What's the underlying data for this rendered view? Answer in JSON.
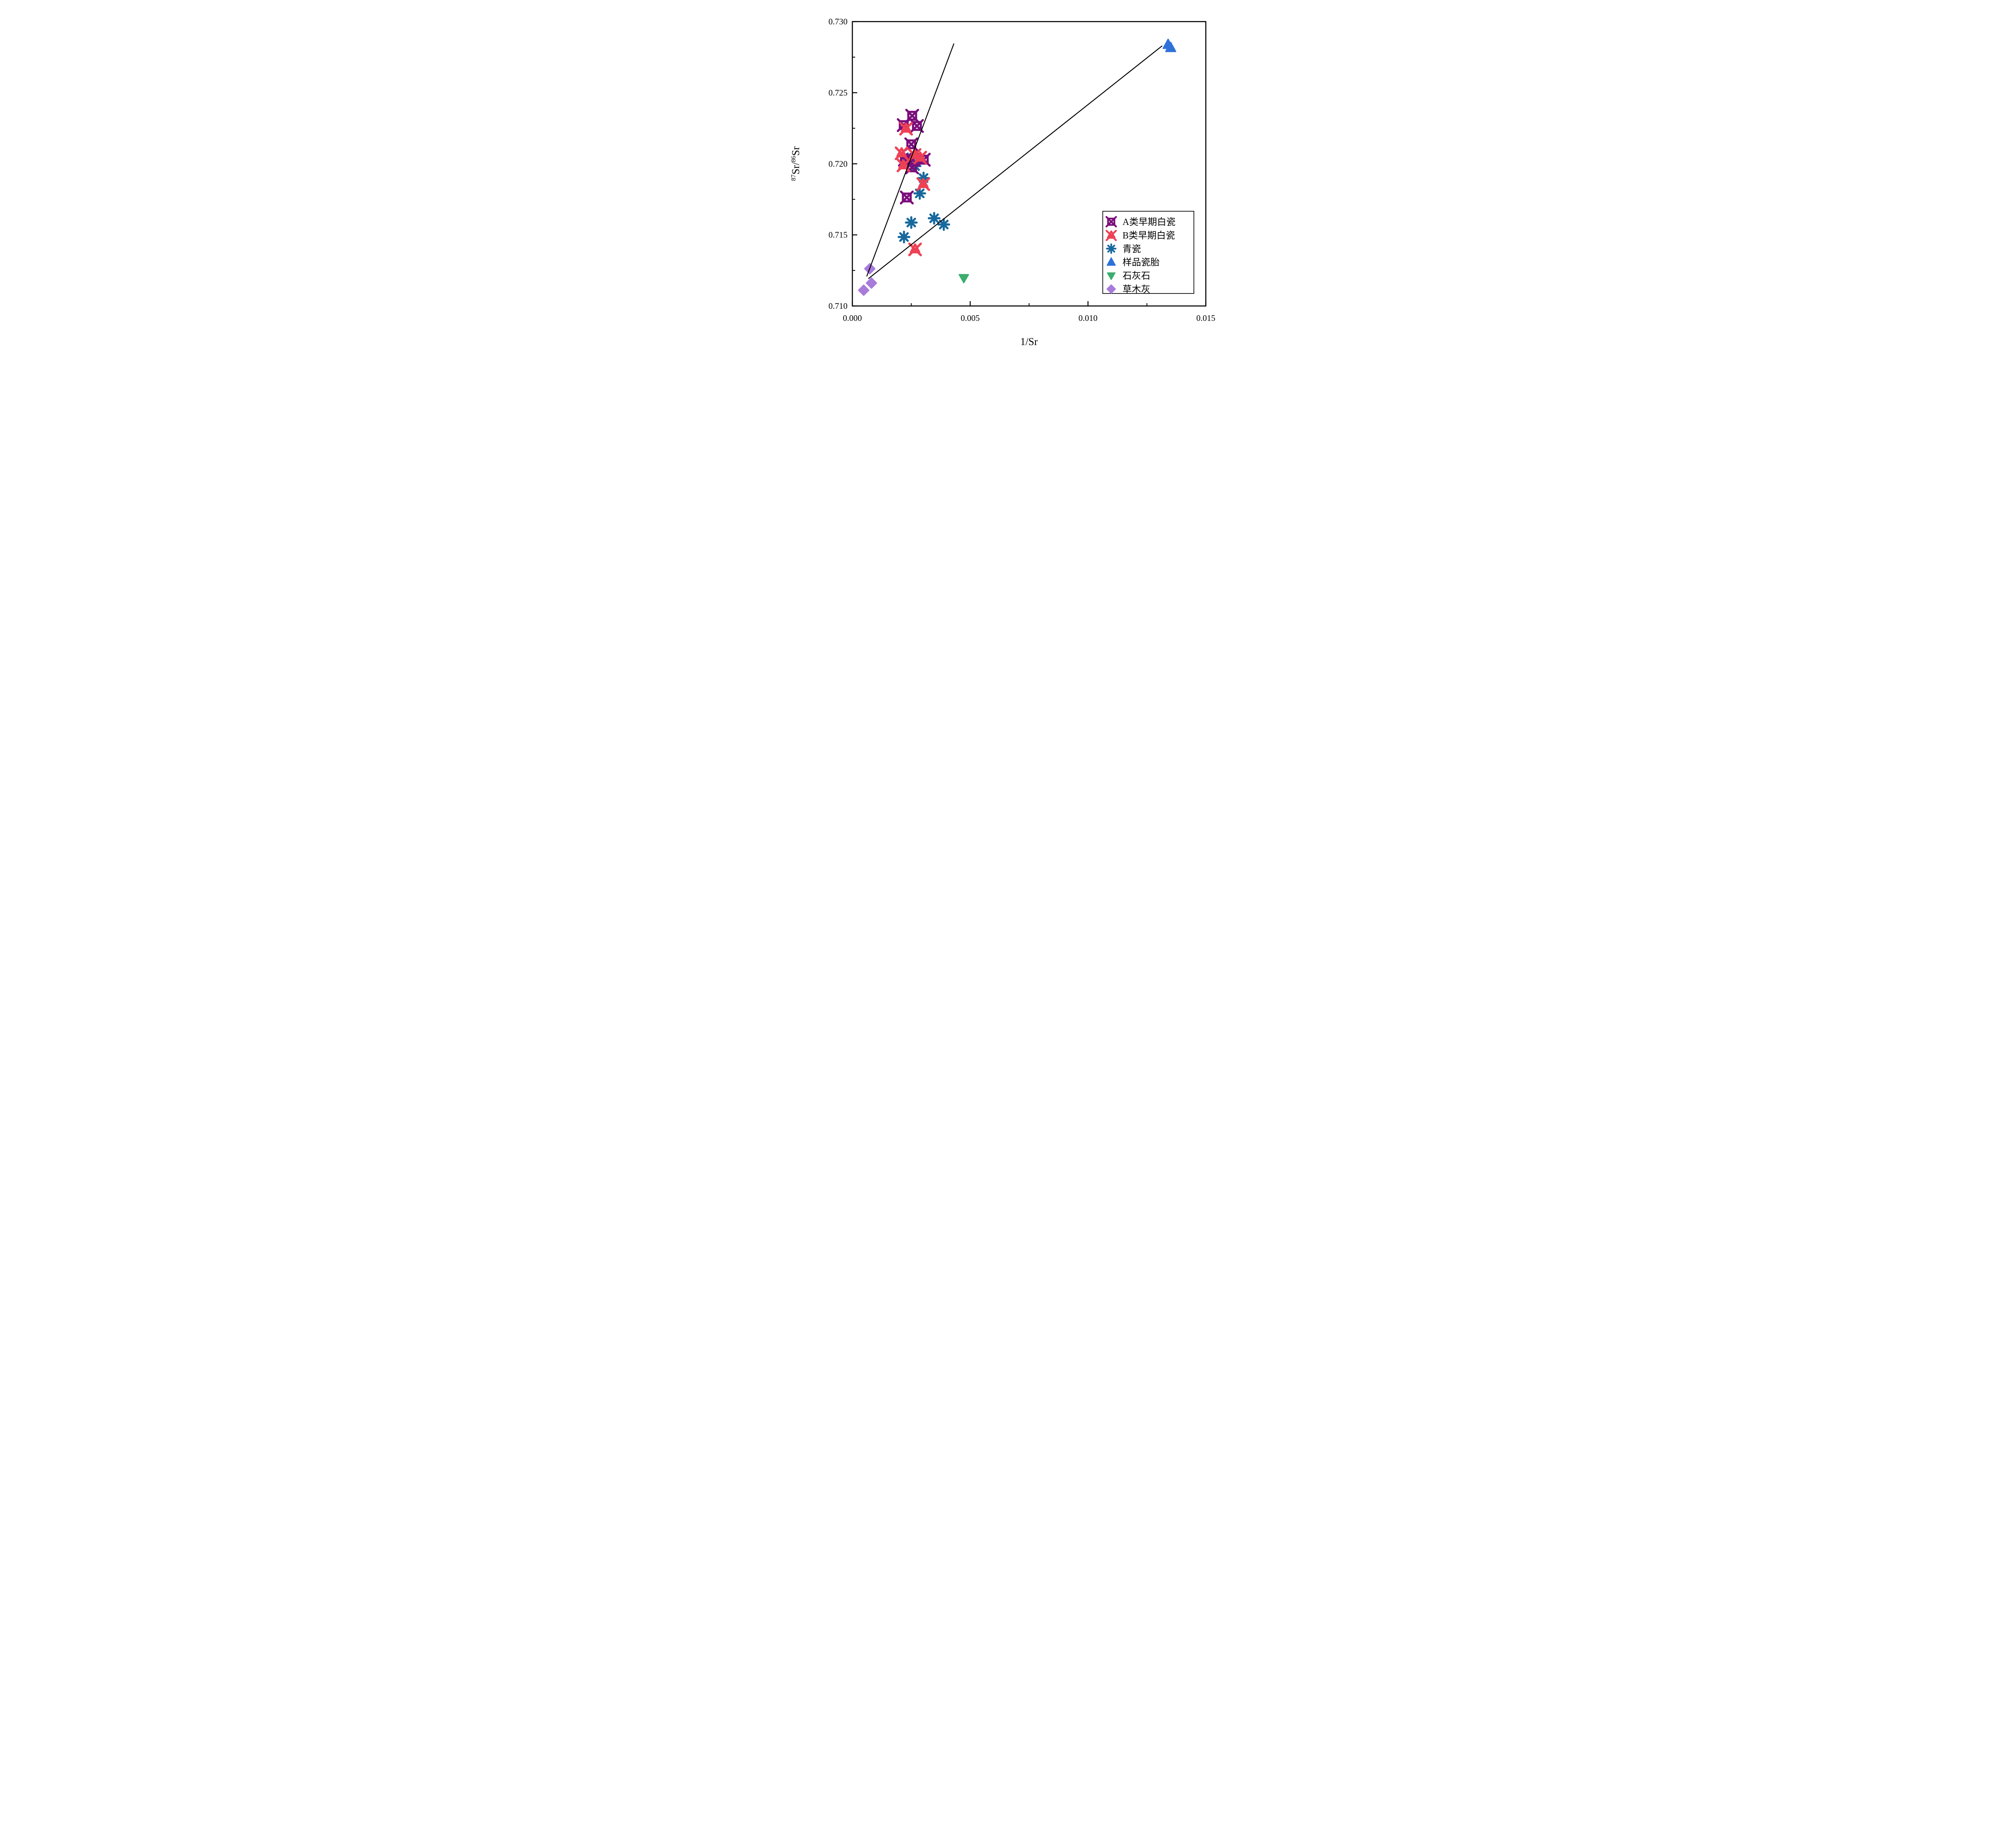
{
  "figure": {
    "background": "#ffffff",
    "frame_color": "#000000"
  },
  "chart_data": {
    "type": "scatter",
    "title": "",
    "xlabel": "1/Sr",
    "ylabel": "87Sr/86Sr",
    "ylabel_parts": [
      {
        "text": "87",
        "sup": true
      },
      {
        "text": "Sr/",
        "sup": false
      },
      {
        "text": "86",
        "sup": true
      },
      {
        "text": "Sr",
        "sup": false
      }
    ],
    "xlim": [
      0.0,
      0.015
    ],
    "ylim": [
      0.71,
      0.73
    ],
    "grid": false,
    "xticks": {
      "values": [
        0.0,
        0.005,
        0.01,
        0.015
      ],
      "labels": [
        "0.000",
        "0.005",
        "0.010",
        "0.015"
      ],
      "minor": [
        0.0025,
        0.0075,
        0.0125
      ]
    },
    "yticks": {
      "values": [
        0.71,
        0.715,
        0.72,
        0.725,
        0.73
      ],
      "labels": [
        "0.710",
        "0.715",
        "0.720",
        "0.725",
        "0.730"
      ],
      "minor": [
        0.7125,
        0.7175,
        0.7225,
        0.7275
      ]
    },
    "legend_position": "lower right",
    "series": [
      {
        "name": "A类早期白瓷",
        "marker": "crossed-square",
        "color": "#7B0D7B",
        "points": [
          [
            0.00254,
            0.72338
          ],
          [
            0.00218,
            0.72272
          ],
          [
            0.00274,
            0.72266
          ],
          [
            0.0025,
            0.72137
          ],
          [
            0.00223,
            0.72029
          ],
          [
            0.00256,
            0.72026
          ],
          [
            0.00253,
            0.71975
          ],
          [
            0.00303,
            0.72029
          ],
          [
            0.00231,
            0.71763
          ]
        ]
      },
      {
        "name": "B类早期白瓷",
        "marker": "triangle-x",
        "color": "#EE4155",
        "points": [
          [
            0.00228,
            0.72249
          ],
          [
            0.00209,
            0.72076
          ],
          [
            0.00264,
            0.72064
          ],
          [
            0.00288,
            0.72046
          ],
          [
            0.00217,
            0.71991
          ],
          [
            0.00301,
            0.71859
          ],
          [
            0.00266,
            0.714
          ]
        ]
      },
      {
        "name": "青瓷",
        "marker": "asterisk",
        "color": "#16689D",
        "points": [
          [
            0.00235,
            0.72035
          ],
          [
            0.00266,
            0.71984
          ],
          [
            0.00302,
            0.719
          ],
          [
            0.00286,
            0.71792
          ],
          [
            0.0025,
            0.71587
          ],
          [
            0.00347,
            0.71617
          ],
          [
            0.00388,
            0.71573
          ],
          [
            0.00219,
            0.71485
          ]
        ]
      },
      {
        "name": "样品瓷胎",
        "marker": "triangle-up",
        "color": "#2E72D9",
        "points": [
          [
            0.0134,
            0.72839
          ],
          [
            0.01351,
            0.72817
          ]
        ]
      },
      {
        "name": "石灰石",
        "marker": "triangle-down",
        "color": "#3BAD6E",
        "points": [
          [
            0.00473,
            0.71197
          ]
        ]
      },
      {
        "name": "草木灰",
        "marker": "diamond",
        "color": "#A87BDB",
        "points": [
          [
            0.00074,
            0.71262
          ],
          [
            0.00081,
            0.71161
          ],
          [
            0.00048,
            0.71111
          ]
        ]
      }
    ],
    "lines": [
      {
        "name": "steep-mixing-line",
        "color": "#000000",
        "from": [
          0.00061,
          0.71208
        ],
        "to": [
          0.00431,
          0.72846
        ]
      },
      {
        "name": "shallow-mixing-line",
        "color": "#000000",
        "from": [
          0.00068,
          0.71192
        ],
        "to": [
          0.01315,
          0.7283
        ]
      }
    ]
  }
}
